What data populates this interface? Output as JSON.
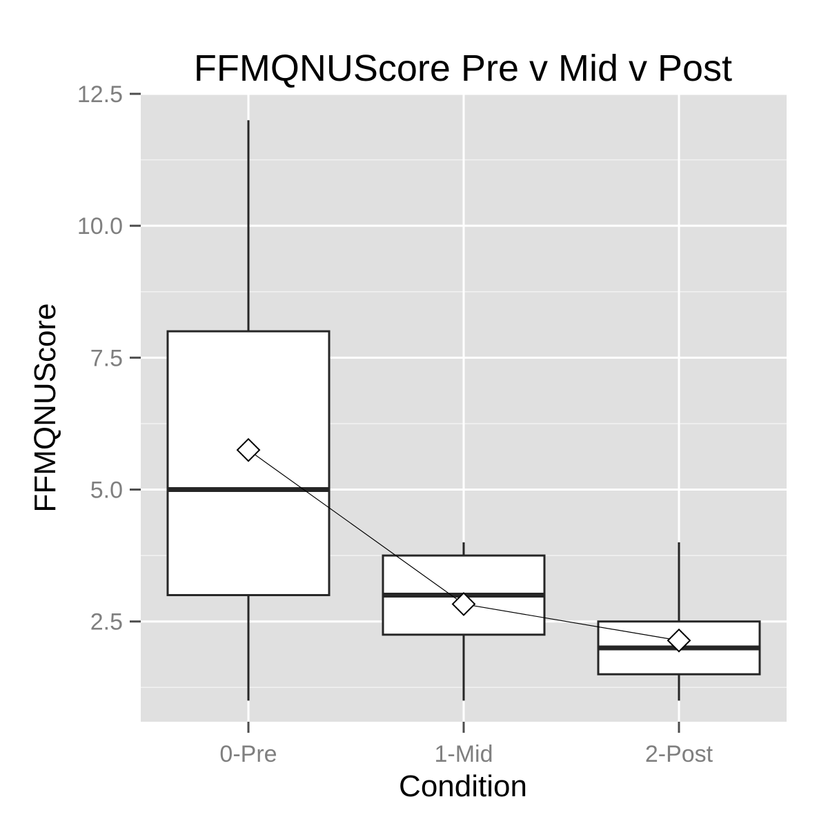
{
  "chart_data": {
    "type": "boxplot",
    "title": "FFMQNUScore Pre v Mid v Post",
    "xlabel": "Condition",
    "ylabel": "FFMQNUScore",
    "categories": [
      "0-Pre",
      "1-Mid",
      "2-Post"
    ],
    "ylim": [
      0.6,
      12.5
    ],
    "yticks": [
      2.5,
      5.0,
      7.5,
      10.0,
      12.5
    ],
    "ytick_labels": [
      "2.5",
      "5.0",
      "7.5",
      "10.0",
      "12.5"
    ],
    "grid": true,
    "boxes": [
      {
        "category": "0-Pre",
        "min": 1.0,
        "q1": 3.0,
        "median": 5.0,
        "q3": 8.0,
        "max": 12.0,
        "mean": 5.75
      },
      {
        "category": "1-Mid",
        "min": 1.0,
        "q1": 2.25,
        "median": 3.0,
        "q3": 3.75,
        "max": 4.0,
        "mean": 2.83
      },
      {
        "category": "2-Post",
        "min": 1.0,
        "q1": 1.5,
        "median": 2.0,
        "q3": 2.5,
        "max": 4.0,
        "mean": 2.14
      }
    ],
    "mean_line": true,
    "colors": {
      "panel_background": "#e0e0e0",
      "grid_major": "#ffffff",
      "grid_minor": "#f2f2f2",
      "box_fill": "#ffffff",
      "box_stroke": "#262626",
      "tick_label": "#7f7f7f",
      "tick_mark": "#4d4d4d"
    }
  }
}
